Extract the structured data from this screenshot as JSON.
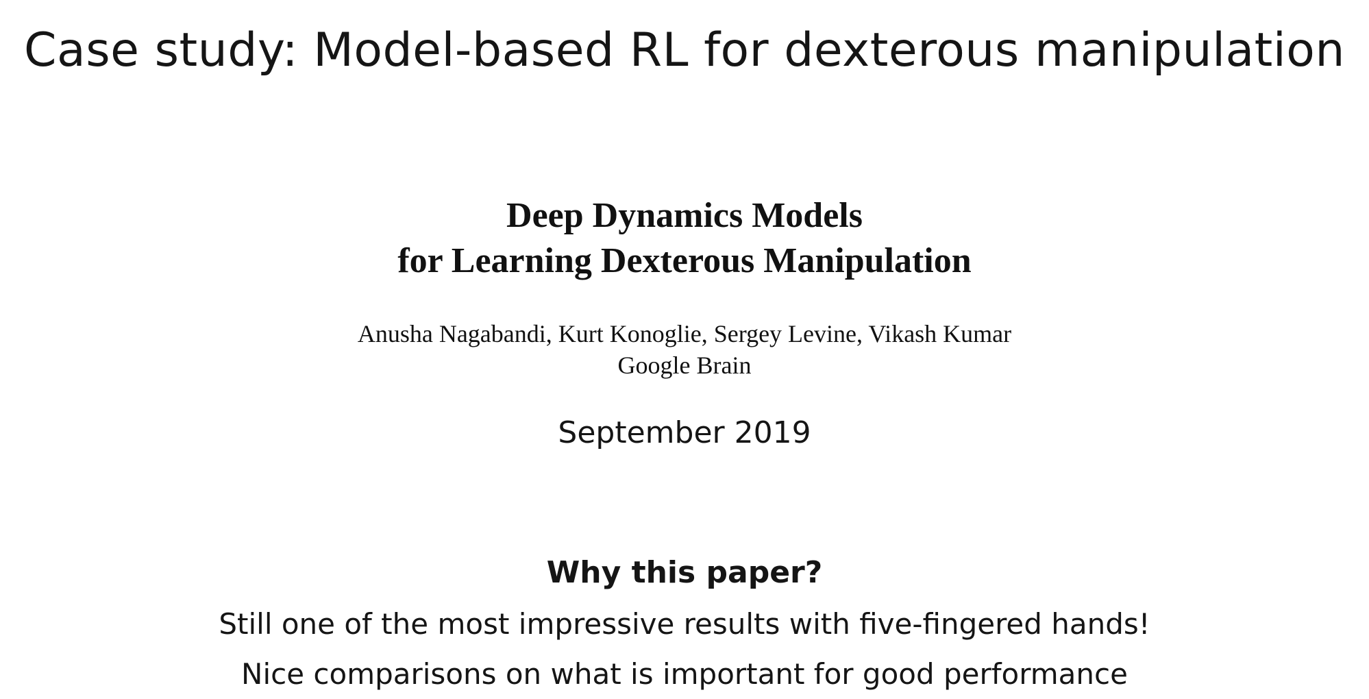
{
  "slide": {
    "title": "Case study: Model-based RL for dexterous manipulation"
  },
  "paper": {
    "title_lines": [
      "Deep Dynamics Models",
      "for Learning Dexterous Manipulation"
    ],
    "authors": "Anusha Nagabandi, Kurt Konoglie, Sergey Levine, Vikash Kumar",
    "affiliation": "Google Brain"
  },
  "date": "September 2019",
  "why": {
    "heading": "Why this paper?",
    "points": [
      "Still one of the most impressive results with five-fingered hands!",
      "Nice comparisons on what is important for good performance"
    ]
  }
}
